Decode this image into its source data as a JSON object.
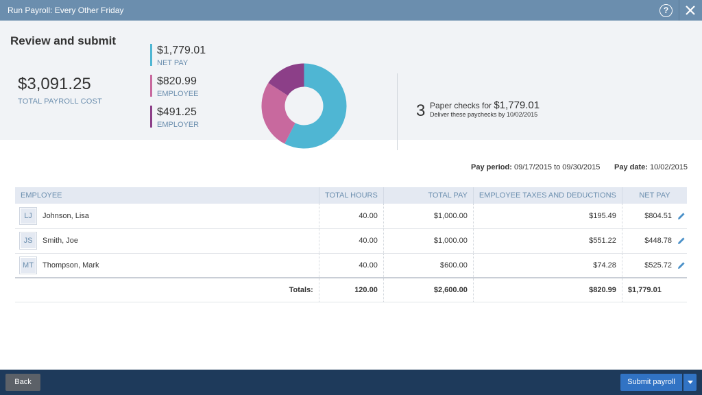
{
  "window": {
    "title": "Run Payroll: Every Other Friday",
    "help_icon": "help-circle-icon",
    "close_icon": "close-icon"
  },
  "summary": {
    "heading": "Review and submit",
    "total_cost": "$3,091.25",
    "total_cost_label": "TOTAL PAYROLL COST",
    "legend": [
      {
        "amount": "$1,779.01",
        "label": "NET PAY",
        "color": "#4fb6d3"
      },
      {
        "amount": "$820.99",
        "label": "EMPLOYEE",
        "color": "#c8699e"
      },
      {
        "amount": "$491.25",
        "label": "EMPLOYER",
        "color": "#8c3f88"
      }
    ],
    "chart_data": {
      "type": "pie",
      "donut": true,
      "categories": [
        "NET PAY",
        "EMPLOYEE",
        "EMPLOYER"
      ],
      "values": [
        1779.01,
        820.99,
        491.25
      ],
      "colors": [
        "#4fb6d3",
        "#c8699e",
        "#8c3f88"
      ]
    },
    "checks": {
      "count": "3",
      "text": "Paper checks for",
      "amount": "$1,779.01",
      "deliver": "Deliver these paychecks by 10/02/2015"
    }
  },
  "pay_info": {
    "period_label": "Pay period:",
    "period_value": "09/17/2015 to 09/30/2015",
    "date_label": "Pay date:",
    "date_value": "10/02/2015"
  },
  "table": {
    "headers": {
      "employee": "EMPLOYEE",
      "hours": "TOTAL HOURS",
      "pay": "TOTAL PAY",
      "taxes": "EMPLOYEE TAXES AND DEDUCTIONS",
      "net": "NET PAY"
    },
    "rows": [
      {
        "initials": "LJ",
        "name": "Johnson, Lisa",
        "hours": "40.00",
        "pay": "$1,000.00",
        "taxes": "$195.49",
        "net": "$804.51"
      },
      {
        "initials": "JS",
        "name": "Smith, Joe",
        "hours": "40.00",
        "pay": "$1,000.00",
        "taxes": "$551.22",
        "net": "$448.78"
      },
      {
        "initials": "MT",
        "name": "Thompson, Mark",
        "hours": "40.00",
        "pay": "$600.00",
        "taxes": "$74.28",
        "net": "$525.72"
      }
    ],
    "totals": {
      "label": "Totals:",
      "hours": "120.00",
      "pay": "$2,600.00",
      "taxes": "$820.99",
      "net": "$1,779.01"
    },
    "edit_icon": "pencil-icon"
  },
  "footer": {
    "back_label": "Back",
    "submit_label": "Submit payroll",
    "dropdown_icon": "caret-down-icon"
  }
}
